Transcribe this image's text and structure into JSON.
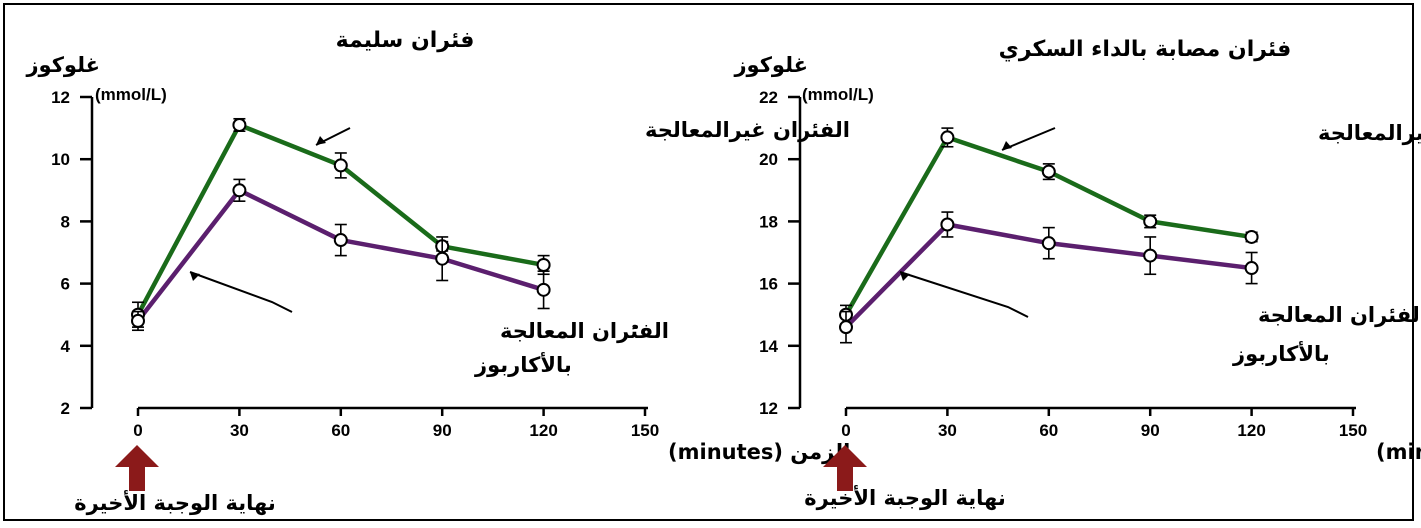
{
  "chart_data": [
    {
      "type": "line",
      "title": "فئران سليمة",
      "ylabel": "غلوكوز",
      "yunit": "(mmol/L)",
      "xlabel": "الزمن (minutes)",
      "xlim": [
        0,
        150
      ],
      "ylim": [
        2,
        12
      ],
      "xticks": [
        0,
        30,
        60,
        90,
        120,
        150
      ],
      "yticks": [
        2,
        4,
        6,
        8,
        10,
        12
      ],
      "x": [
        0,
        30,
        60,
        90,
        120
      ],
      "series": [
        {
          "name": "الفئران غيرالمعالجة",
          "color": "#1a6b1a",
          "values": [
            5.0,
            11.1,
            9.8,
            7.2,
            6.6
          ],
          "errors": [
            0.4,
            0.2,
            0.4,
            0.15,
            0.3
          ]
        },
        {
          "name": "الفئران المعالجة بالأكاربوز",
          "color": "#5b1f6e",
          "values": [
            4.8,
            9.0,
            7.4,
            6.8,
            5.8
          ],
          "errors": [
            0.3,
            0.35,
            0.5,
            0.7,
            0.6
          ]
        }
      ],
      "annotation": "نهاية الوجبة الأخيرة",
      "arrow_color": "#8b1a1a"
    },
    {
      "type": "line",
      "title": "فئران مصابة بالداء السكري",
      "ylabel": "غلوكوز",
      "yunit": "(mmol/L)",
      "xlabel": "الزمن (minutes)",
      "xlim": [
        0,
        150
      ],
      "ylim": [
        12,
        22
      ],
      "xticks": [
        0,
        30,
        60,
        90,
        120,
        150
      ],
      "yticks": [
        12,
        14,
        16,
        18,
        20,
        22
      ],
      "x": [
        0,
        30,
        60,
        90,
        120
      ],
      "series": [
        {
          "name": "الفئران غيرالمعالجة",
          "color": "#1a6b1a",
          "values": [
            15.0,
            20.7,
            19.6,
            18.0,
            17.5
          ],
          "errors": [
            0.3,
            0.3,
            0.25,
            0.2,
            0.15
          ]
        },
        {
          "name": "الفئران المعالجة بالأكاربوز",
          "color": "#5b1f6e",
          "values": [
            14.6,
            17.9,
            17.3,
            16.9,
            16.5
          ],
          "errors": [
            0.5,
            0.4,
            0.5,
            0.6,
            0.5
          ]
        }
      ],
      "annotation": "نهاية الوجبة الأخيرة",
      "arrow_color": "#8b1a1a"
    }
  ]
}
